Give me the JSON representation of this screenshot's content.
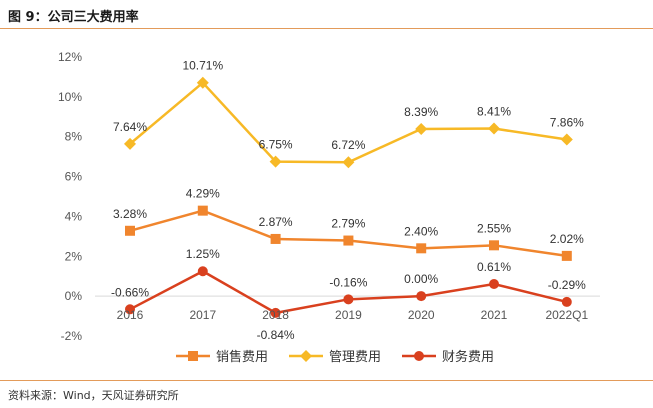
{
  "figure": {
    "title": "图 9：公司三大费用率",
    "source": "资料来源：Wind，天风证券研究所"
  },
  "chart_data": {
    "type": "line",
    "title": "",
    "xlabel": "",
    "ylabel": "",
    "categories": [
      "2016",
      "2017",
      "2018",
      "2019",
      "2020",
      "2021",
      "2022Q1"
    ],
    "ylim": [
      -2,
      12
    ],
    "yticks": [
      "12%",
      "10%",
      "8%",
      "6%",
      "4%",
      "2%",
      "0%",
      "-2%"
    ],
    "ytick_values": [
      12,
      10,
      8,
      6,
      4,
      2,
      0,
      -2
    ],
    "legend_position": "bottom",
    "grid": false,
    "series": [
      {
        "name": "销售费用",
        "color": "#f0852d",
        "marker": "square",
        "values": [
          3.28,
          4.29,
          2.87,
          2.79,
          2.4,
          2.55,
          2.02
        ],
        "labels": [
          "3.28%",
          "4.29%",
          "2.87%",
          "2.79%",
          "2.40%",
          "2.55%",
          "2.02%"
        ]
      },
      {
        "name": "管理费用",
        "color": "#f7b926",
        "marker": "diamond",
        "values": [
          7.64,
          10.71,
          6.75,
          6.72,
          8.39,
          8.41,
          7.86
        ],
        "labels": [
          "7.64%",
          "10.71%",
          "6.75%",
          "6.72%",
          "8.39%",
          "8.41%",
          "7.86%"
        ]
      },
      {
        "name": "财务费用",
        "color": "#d9401e",
        "marker": "circle",
        "values": [
          -0.66,
          1.25,
          -0.84,
          -0.16,
          0.0,
          0.61,
          -0.29
        ],
        "labels": [
          "-0.66%",
          "1.25%",
          "-0.84%",
          "-0.16%",
          "0.00%",
          "0.61%",
          "-0.29%"
        ]
      }
    ]
  }
}
